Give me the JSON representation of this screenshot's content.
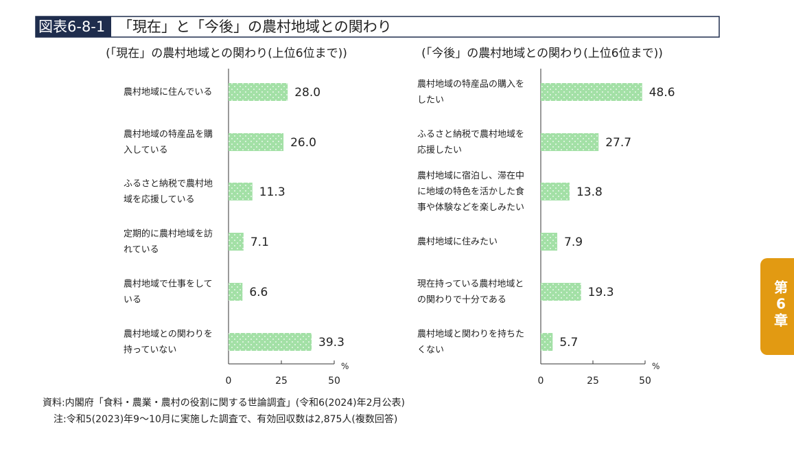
{
  "header": {
    "label": "図表6-8-1",
    "title": "「現在」と「今後」の農村地域との関わり"
  },
  "chart_data": [
    {
      "type": "barh",
      "title": "(「現在」の農村地域との関わり(上位6位まで))",
      "categories": [
        "農村地域に住んでいる",
        "農村地域の特産品を購入している",
        "ふるさと納税で農村地域を応援している",
        "定期的に農村地域を訪れている",
        "農村地域で仕事をしている",
        "農村地域との関わりを持っていない"
      ],
      "values": [
        28.0,
        26.0,
        11.3,
        7.1,
        6.6,
        39.3
      ],
      "value_labels": [
        "28.0",
        "26.0",
        "11.3",
        "7.1",
        "6.6",
        "39.3"
      ],
      "xlim": [
        0,
        50
      ],
      "xticks": [
        0,
        25,
        50
      ],
      "unit": "%",
      "color": "#a3e0a6"
    },
    {
      "type": "barh",
      "title": "(「今後」の農村地域との関わり(上位6位まで))",
      "categories": [
        "農村地域の特産品の購入をしたい",
        "ふるさと納税で農村地域を応援したい",
        "農村地域に宿泊し、滞在中に地域の特色を活かした食事や体験などを楽しみたい",
        "農村地域に住みたい",
        "現在持っている農村地域との関わりで十分である",
        "農村地域と関わりを持ちたくない"
      ],
      "values": [
        48.6,
        27.7,
        13.8,
        7.9,
        19.3,
        5.7
      ],
      "xlim": [
        0,
        50
      ],
      "xticks": [
        0,
        25,
        50
      ],
      "unit": "%",
      "color": "#a3e0a6"
    }
  ],
  "notes": [
    "資料:内閣府「食料・農業・農村の役割に関する世論調査」(令和6(2024)年2月公表)",
    "注:令和5(2023)年9〜10月に実施した調査で、有効回収数は2,875人(複数回答)"
  ],
  "side_tab": [
    "第",
    "6",
    "章"
  ]
}
